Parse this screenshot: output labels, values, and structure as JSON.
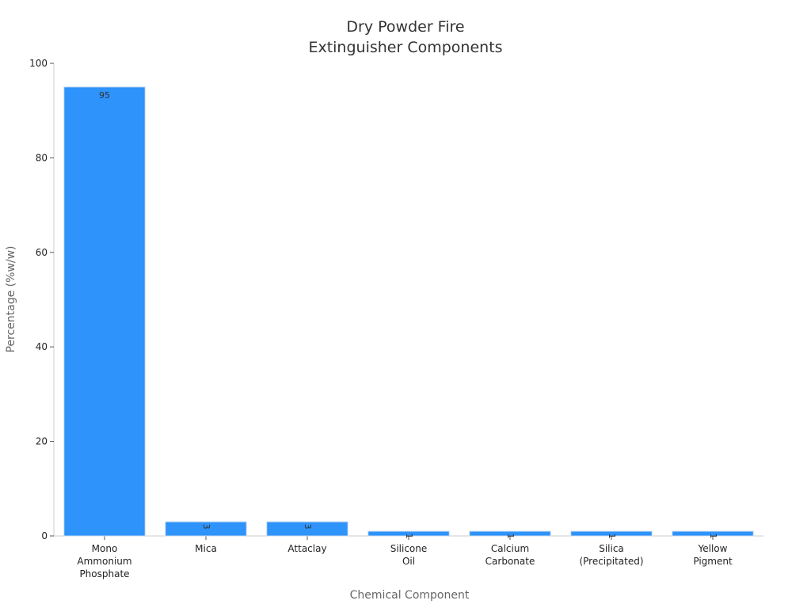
{
  "chart_data": {
    "type": "bar",
    "title": [
      "Dry Powder Fire",
      "Extinguisher Components"
    ],
    "xlabel": "Chemical Component",
    "ylabel": "Percentage (%w/w)",
    "categories": [
      [
        "Mono",
        "Ammonium",
        "Phosphate"
      ],
      [
        "Mica"
      ],
      [
        "Attaclay"
      ],
      [
        "Silicone",
        "Oil"
      ],
      [
        "Calcium",
        "Carbonate"
      ],
      [
        "Silica",
        "(Precipitated)"
      ],
      [
        "Yellow",
        "Pigment"
      ]
    ],
    "values": [
      95,
      3,
      3,
      1,
      1,
      1,
      1
    ],
    "data_labels": [
      "95",
      "3",
      "3",
      "1",
      "1",
      "1",
      "1"
    ],
    "ylim": [
      0,
      100
    ],
    "yticks": [
      0,
      20,
      40,
      60,
      80,
      100
    ],
    "bar_color": "#2e93fa",
    "bar_edge_color": "#c9dcef",
    "grid": false,
    "legend": "none"
  }
}
